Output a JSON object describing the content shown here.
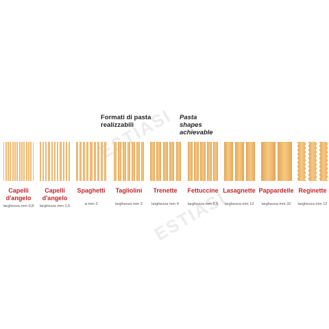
{
  "heading_it": "Formati di pasta realizzabili",
  "heading_en": "Pasta shapes achievable",
  "watermark": "ESTIASI",
  "shapes": [
    {
      "name": "Capelli\nd'angelo",
      "size": "larghezza mm 0,8"
    },
    {
      "name": "Capelli\nd'angelo",
      "size": "larghezza mm 1,5"
    },
    {
      "name": "Spaghetti",
      "size": "ø mm 2"
    },
    {
      "name": "Tagliolini",
      "size": "larghezza mm 2"
    },
    {
      "name": "Trenette",
      "size": "larghezza mm 4"
    },
    {
      "name": "Fettuccine",
      "size": "larghezza mm 6,5"
    },
    {
      "name": "Lasagnette",
      "size": "larghezza mm 12"
    },
    {
      "name": "Pappardelle",
      "size": "larghezza mm 32"
    },
    {
      "name": "Reginette",
      "size": "larghezza mm 12"
    }
  ]
}
